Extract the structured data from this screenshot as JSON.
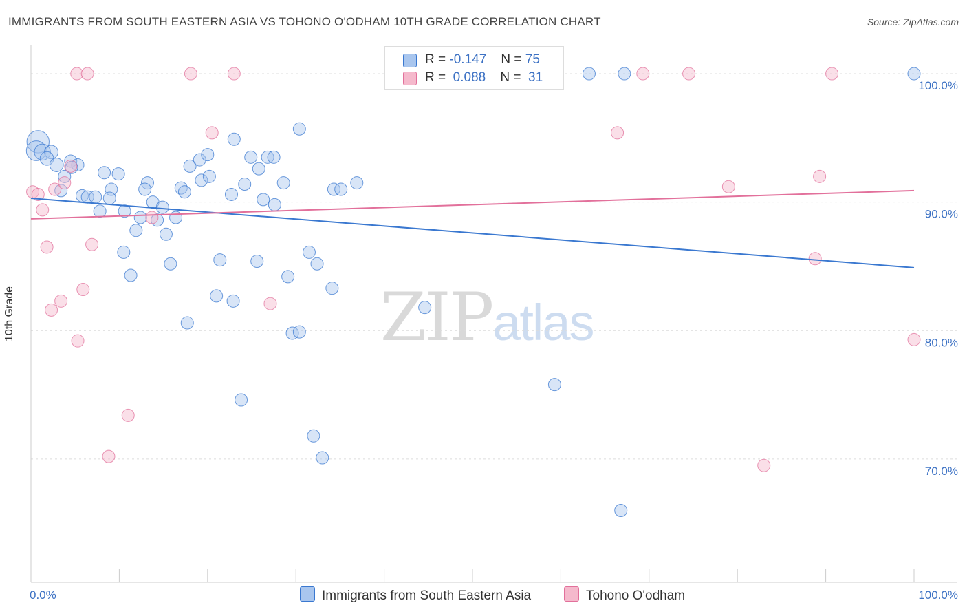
{
  "title": "IMMIGRANTS FROM SOUTH EASTERN ASIA VS TOHONO O'ODHAM 10TH GRADE CORRELATION CHART",
  "source": "Source: ZipAtlas.com",
  "watermark": {
    "zip": "ZIP",
    "atlas": "atlas"
  },
  "legend_stats": [
    {
      "r_label": "R =",
      "r_value": "-0.147",
      "n_label": "N =",
      "n_value": "75",
      "color": "#a9c6ee"
    },
    {
      "r_label": "R =",
      "r_value": "0.088",
      "n_label": "N =",
      "n_value": "31",
      "color": "#f5b9cc"
    }
  ],
  "chart_data": {
    "type": "scatter",
    "title": "IMMIGRANTS FROM SOUTH EASTERN ASIA VS TOHONO O'ODHAM 10TH GRADE CORRELATION CHART",
    "xlabel": "",
    "ylabel": "10th Grade",
    "xlim": [
      0,
      100
    ],
    "ylim": [
      60.4,
      102.2
    ],
    "x_tick_labels": [
      "0.0%",
      "100.0%"
    ],
    "y_ticks": [
      70,
      80,
      90,
      100
    ],
    "y_tick_labels": [
      "70.0%",
      "80.0%",
      "90.0%",
      "100.0%"
    ],
    "grid": true,
    "legend_position": "bottom",
    "series": [
      {
        "name": "Immigrants from South Eastern Asia",
        "color": "#3a78d0",
        "fill": "#a9c6ee",
        "trend": {
          "x": [
            0,
            100
          ],
          "y": [
            90.3,
            84.9
          ]
        },
        "points": [
          {
            "x": 0.8,
            "y": 94.7,
            "s": 1.8
          },
          {
            "x": 0.6,
            "y": 94.0,
            "s": 1.6
          },
          {
            "x": 1.3,
            "y": 93.9,
            "s": 1.3
          },
          {
            "x": 2.3,
            "y": 93.9,
            "s": 1.1
          },
          {
            "x": 1.8,
            "y": 93.4,
            "s": 1.1
          },
          {
            "x": 2.9,
            "y": 92.9,
            "s": 1.1
          },
          {
            "x": 4.5,
            "y": 93.2,
            "s": 1
          },
          {
            "x": 5.3,
            "y": 92.9,
            "s": 1
          },
          {
            "x": 4.6,
            "y": 92.7,
            "s": 1
          },
          {
            "x": 3.8,
            "y": 92.0,
            "s": 1
          },
          {
            "x": 8.3,
            "y": 92.3,
            "s": 1
          },
          {
            "x": 9.9,
            "y": 92.2,
            "s": 1
          },
          {
            "x": 13.2,
            "y": 91.5,
            "s": 1
          },
          {
            "x": 3.4,
            "y": 90.9,
            "s": 1
          },
          {
            "x": 5.8,
            "y": 90.5,
            "s": 1
          },
          {
            "x": 6.4,
            "y": 90.4,
            "s": 1
          },
          {
            "x": 7.3,
            "y": 90.4,
            "s": 1
          },
          {
            "x": 9.1,
            "y": 91.0,
            "s": 1
          },
          {
            "x": 8.9,
            "y": 90.3,
            "s": 1
          },
          {
            "x": 12.9,
            "y": 91.0,
            "s": 1
          },
          {
            "x": 17.0,
            "y": 91.1,
            "s": 1
          },
          {
            "x": 17.4,
            "y": 90.8,
            "s": 1
          },
          {
            "x": 7.8,
            "y": 89.3,
            "s": 1
          },
          {
            "x": 10.6,
            "y": 89.3,
            "s": 1
          },
          {
            "x": 13.8,
            "y": 90.0,
            "s": 1
          },
          {
            "x": 14.9,
            "y": 89.6,
            "s": 1
          },
          {
            "x": 12.4,
            "y": 88.8,
            "s": 1
          },
          {
            "x": 14.3,
            "y": 88.6,
            "s": 1
          },
          {
            "x": 16.4,
            "y": 88.8,
            "s": 1
          },
          {
            "x": 11.9,
            "y": 87.8,
            "s": 1
          },
          {
            "x": 15.3,
            "y": 87.5,
            "s": 1
          },
          {
            "x": 10.5,
            "y": 86.1,
            "s": 1
          },
          {
            "x": 11.3,
            "y": 84.3,
            "s": 1
          },
          {
            "x": 15.8,
            "y": 85.2,
            "s": 1
          },
          {
            "x": 18.0,
            "y": 92.8,
            "s": 1
          },
          {
            "x": 19.1,
            "y": 93.3,
            "s": 1
          },
          {
            "x": 20.0,
            "y": 93.7,
            "s": 1
          },
          {
            "x": 19.3,
            "y": 91.7,
            "s": 1
          },
          {
            "x": 20.2,
            "y": 92.0,
            "s": 1
          },
          {
            "x": 23.0,
            "y": 94.9,
            "s": 1
          },
          {
            "x": 24.9,
            "y": 93.5,
            "s": 1
          },
          {
            "x": 25.8,
            "y": 92.6,
            "s": 1
          },
          {
            "x": 26.8,
            "y": 93.5,
            "s": 1
          },
          {
            "x": 27.5,
            "y": 93.5,
            "s": 1
          },
          {
            "x": 24.2,
            "y": 91.4,
            "s": 1
          },
          {
            "x": 22.7,
            "y": 90.6,
            "s": 1
          },
          {
            "x": 26.3,
            "y": 90.2,
            "s": 1
          },
          {
            "x": 27.6,
            "y": 89.8,
            "s": 1
          },
          {
            "x": 28.6,
            "y": 91.5,
            "s": 1
          },
          {
            "x": 30.4,
            "y": 95.7,
            "s": 1
          },
          {
            "x": 34.3,
            "y": 91.0,
            "s": 1
          },
          {
            "x": 35.1,
            "y": 91.0,
            "s": 1
          },
          {
            "x": 36.9,
            "y": 91.5,
            "s": 1
          },
          {
            "x": 21.4,
            "y": 85.5,
            "s": 1
          },
          {
            "x": 25.6,
            "y": 85.4,
            "s": 1
          },
          {
            "x": 29.1,
            "y": 84.2,
            "s": 1
          },
          {
            "x": 31.5,
            "y": 86.1,
            "s": 1
          },
          {
            "x": 32.4,
            "y": 85.2,
            "s": 1
          },
          {
            "x": 34.1,
            "y": 83.3,
            "s": 1
          },
          {
            "x": 21.0,
            "y": 82.7,
            "s": 1
          },
          {
            "x": 22.9,
            "y": 82.3,
            "s": 1
          },
          {
            "x": 17.7,
            "y": 80.6,
            "s": 1
          },
          {
            "x": 29.6,
            "y": 79.8,
            "s": 1
          },
          {
            "x": 30.4,
            "y": 79.9,
            "s": 1
          },
          {
            "x": 23.8,
            "y": 74.6,
            "s": 1
          },
          {
            "x": 32.0,
            "y": 71.8,
            "s": 1
          },
          {
            "x": 33.0,
            "y": 70.1,
            "s": 1
          },
          {
            "x": 44.6,
            "y": 81.8,
            "s": 1
          },
          {
            "x": 59.3,
            "y": 75.8,
            "s": 1
          },
          {
            "x": 66.8,
            "y": 66.0,
            "s": 1
          },
          {
            "x": 42.2,
            "y": 100.0,
            "s": 1
          },
          {
            "x": 63.2,
            "y": 100.0,
            "s": 1
          },
          {
            "x": 67.2,
            "y": 100.0,
            "s": 1
          },
          {
            "x": 100.0,
            "y": 100.0,
            "s": 1
          },
          {
            "x": 43.0,
            "y": 100.0,
            "s": 1
          }
        ]
      },
      {
        "name": "Tohono O'odham",
        "color": "#e2709b",
        "fill": "#f5b9cc",
        "trend": {
          "x": [
            0,
            100
          ],
          "y": [
            88.7,
            90.9
          ]
        },
        "points": [
          {
            "x": 0.2,
            "y": 90.8,
            "s": 1
          },
          {
            "x": 0.8,
            "y": 90.6,
            "s": 1
          },
          {
            "x": 1.3,
            "y": 89.4,
            "s": 1
          },
          {
            "x": 2.7,
            "y": 91.0,
            "s": 1
          },
          {
            "x": 3.8,
            "y": 91.5,
            "s": 1
          },
          {
            "x": 4.5,
            "y": 92.8,
            "s": 1
          },
          {
            "x": 1.8,
            "y": 86.5,
            "s": 1
          },
          {
            "x": 6.9,
            "y": 86.7,
            "s": 1
          },
          {
            "x": 5.9,
            "y": 83.2,
            "s": 1
          },
          {
            "x": 3.4,
            "y": 82.3,
            "s": 1
          },
          {
            "x": 2.3,
            "y": 81.6,
            "s": 1
          },
          {
            "x": 5.3,
            "y": 79.2,
            "s": 1
          },
          {
            "x": 11.0,
            "y": 73.4,
            "s": 1
          },
          {
            "x": 8.8,
            "y": 70.2,
            "s": 1
          },
          {
            "x": 13.7,
            "y": 88.8,
            "s": 1
          },
          {
            "x": 20.5,
            "y": 95.4,
            "s": 1
          },
          {
            "x": 27.1,
            "y": 82.1,
            "s": 1
          },
          {
            "x": 5.2,
            "y": 100.0,
            "s": 1
          },
          {
            "x": 6.4,
            "y": 100.0,
            "s": 1
          },
          {
            "x": 18.1,
            "y": 100.0,
            "s": 1
          },
          {
            "x": 23.0,
            "y": 100.0,
            "s": 1
          },
          {
            "x": 47.7,
            "y": 100.0,
            "s": 1
          },
          {
            "x": 66.4,
            "y": 95.4,
            "s": 1
          },
          {
            "x": 69.3,
            "y": 100.0,
            "s": 1
          },
          {
            "x": 74.5,
            "y": 100.0,
            "s": 1
          },
          {
            "x": 79.0,
            "y": 91.2,
            "s": 1
          },
          {
            "x": 90.7,
            "y": 100.0,
            "s": 1
          },
          {
            "x": 89.3,
            "y": 92.0,
            "s": 1
          },
          {
            "x": 88.8,
            "y": 85.6,
            "s": 1
          },
          {
            "x": 100.0,
            "y": 79.3,
            "s": 1
          },
          {
            "x": 83.0,
            "y": 69.5,
            "s": 1
          }
        ]
      }
    ]
  }
}
